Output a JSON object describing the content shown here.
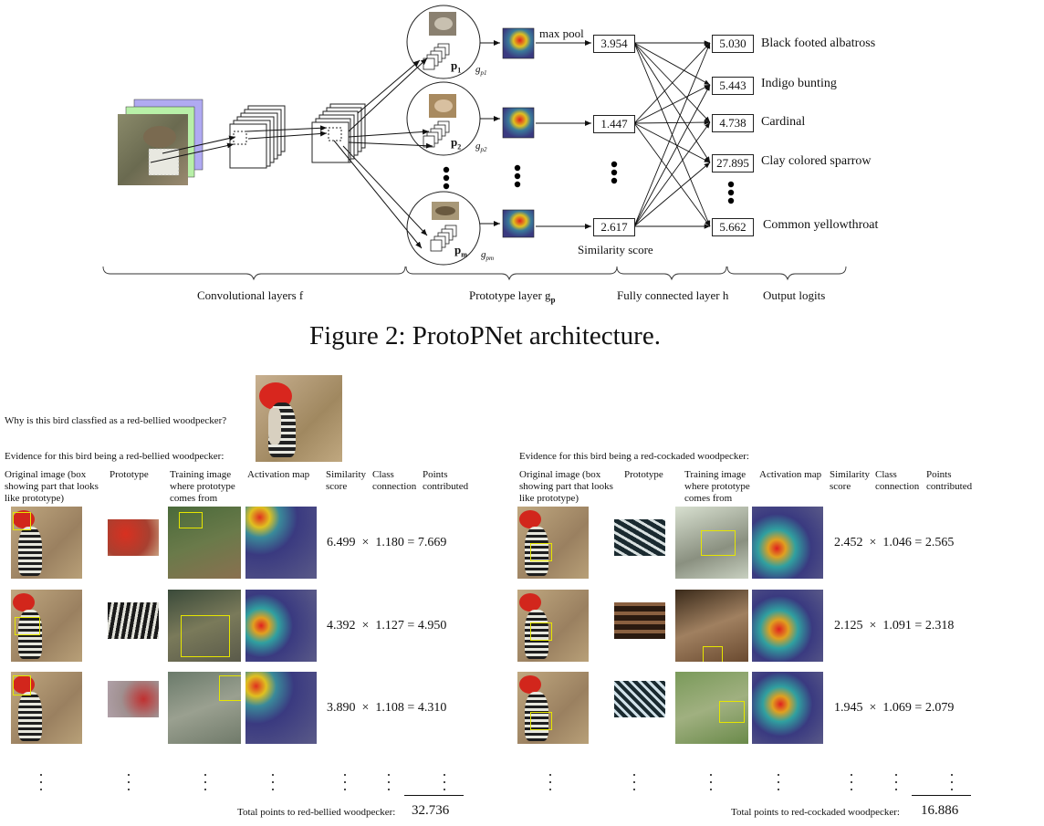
{
  "figure2": {
    "sections": {
      "conv": "Convolutional layers f",
      "proto": "Prototype layer g",
      "proto_sub": "p",
      "fc": "Fully connected layer h",
      "logits": "Output logits"
    },
    "max_pool": "max pool",
    "similarity_score_label": "Similarity score",
    "prototype_labels": [
      "p",
      "p",
      "p"
    ],
    "prototype_subs": [
      "1",
      "2",
      "m"
    ],
    "g_labels": [
      "g",
      "g",
      "g"
    ],
    "g_subs": [
      "p1",
      "p2",
      "pm"
    ],
    "similarity_values": [
      "3.954",
      "1.447",
      "2.617"
    ],
    "logits": [
      {
        "value": "5.030",
        "class": "Black footed albatross"
      },
      {
        "value": "5.443",
        "class": "Indigo bunting"
      },
      {
        "value": "4.738",
        "class": "Cardinal"
      },
      {
        "value": "27.895",
        "class": "Clay colored sparrow"
      },
      {
        "value": "5.662",
        "class": "Common yellowthroat"
      }
    ],
    "caption": "Figure 2: ProtoPNet architecture."
  },
  "figure3": {
    "question": "Why is this bird classfied as a red-bellied woodpecker?",
    "left": {
      "heading": "Evidence for this bird being a red-bellied woodpecker:",
      "columns": {
        "original": "Original image (box showing part that looks like prototype)",
        "prototype": "Prototype",
        "training": "Training image where prototype comes from",
        "activation": "Activation map",
        "similarity": "Similarity score",
        "class_conn": "Class connection",
        "points": "Points contributed"
      },
      "rows": [
        {
          "sim": "6.499",
          "conn": "1.180",
          "pts": "7.669"
        },
        {
          "sim": "4.392",
          "conn": "1.127",
          "pts": "4.950"
        },
        {
          "sim": "3.890",
          "conn": "1.108",
          "pts": "4.310"
        }
      ],
      "total_label": "Total points to red-bellied woodpecker:",
      "total": "32.736"
    },
    "right": {
      "heading": "Evidence for this bird being a red-cockaded woodpecker:",
      "columns": {
        "original": "Original image (box showing part that looks like prototype)",
        "prototype": "Prototype",
        "training": "Training image where prototype comes from",
        "activation": "Activation map",
        "similarity": "Similarity score",
        "class_conn": "Class connection",
        "points": "Points contributed"
      },
      "rows": [
        {
          "sim": "2.452",
          "conn": "1.046",
          "pts": "2.565"
        },
        {
          "sim": "2.125",
          "conn": "1.091",
          "pts": "2.318"
        },
        {
          "sim": "1.945",
          "conn": "1.069",
          "pts": "2.079"
        }
      ],
      "total_label": "Total points to red-cockaded woodpecker:",
      "total": "16.886"
    },
    "operators": {
      "times": "×",
      "equals": "="
    }
  }
}
